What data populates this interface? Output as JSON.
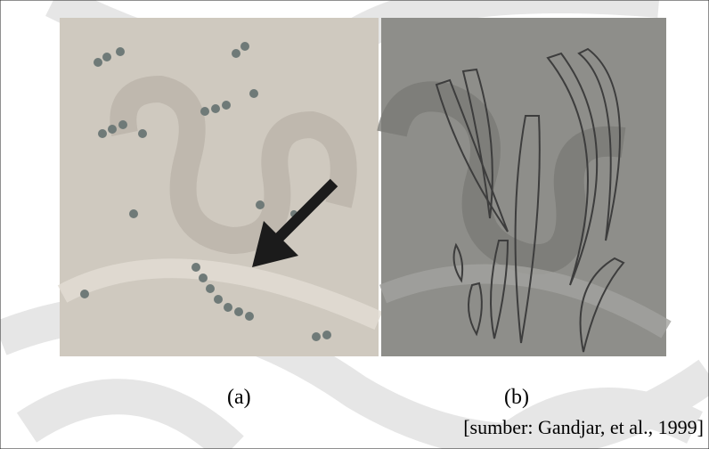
{
  "figure": {
    "panels": [
      {
        "label": "(a)"
      },
      {
        "label": "(b)"
      }
    ],
    "source": "[sumber: Gandjar, et al., 1999]"
  }
}
